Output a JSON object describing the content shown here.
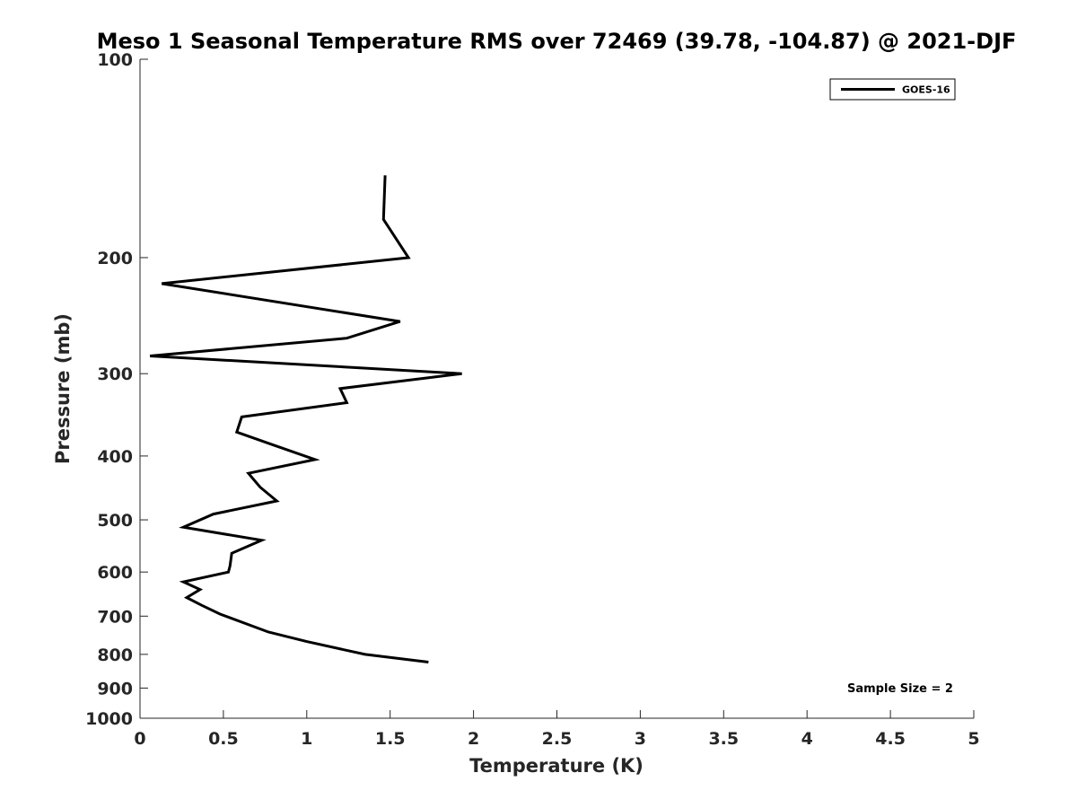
{
  "chart_data": {
    "type": "line",
    "title": "Meso 1 Seasonal Temperature RMS over 72469 (39.78, -104.87) @ 2021-DJF",
    "xlabel": "Temperature (K)",
    "ylabel": "Pressure (mb)",
    "xlim": [
      0,
      5
    ],
    "ylim": [
      1000,
      100
    ],
    "y_scale": "log",
    "y_reversed": true,
    "grid": false,
    "x_ticks": [
      0,
      0.5,
      1,
      1.5,
      2,
      2.5,
      3,
      3.5,
      4,
      4.5,
      5
    ],
    "x_tick_labels": [
      "0",
      "0.5",
      "1",
      "1.5",
      "2",
      "2.5",
      "3",
      "3.5",
      "4",
      "4.5",
      "5"
    ],
    "y_ticks": [
      100,
      200,
      300,
      400,
      500,
      600,
      700,
      800,
      900,
      1000
    ],
    "y_tick_labels": [
      "100",
      "200",
      "300",
      "400",
      "500",
      "600",
      "700",
      "800",
      "900",
      "1000"
    ],
    "legend_position": "top-right",
    "annotation": "Sample Size = 2",
    "series": [
      {
        "name": "GOES-16",
        "color": "#000000",
        "points": [
          {
            "x": 1.47,
            "y": 150
          },
          {
            "x": 1.46,
            "y": 175
          },
          {
            "x": 1.61,
            "y": 200
          },
          {
            "x": 0.13,
            "y": 219
          },
          {
            "x": 1.56,
            "y": 250
          },
          {
            "x": 1.24,
            "y": 265
          },
          {
            "x": 0.06,
            "y": 282
          },
          {
            "x": 1.93,
            "y": 300
          },
          {
            "x": 1.2,
            "y": 316
          },
          {
            "x": 1.24,
            "y": 332
          },
          {
            "x": 0.61,
            "y": 349
          },
          {
            "x": 0.58,
            "y": 368
          },
          {
            "x": 0.8,
            "y": 385
          },
          {
            "x": 1.05,
            "y": 405
          },
          {
            "x": 0.65,
            "y": 425
          },
          {
            "x": 0.72,
            "y": 446
          },
          {
            "x": 0.82,
            "y": 468
          },
          {
            "x": 0.44,
            "y": 490
          },
          {
            "x": 0.26,
            "y": 513
          },
          {
            "x": 0.73,
            "y": 537
          },
          {
            "x": 0.55,
            "y": 562
          },
          {
            "x": 0.54,
            "y": 587
          },
          {
            "x": 0.53,
            "y": 600
          },
          {
            "x": 0.26,
            "y": 621
          },
          {
            "x": 0.36,
            "y": 638
          },
          {
            "x": 0.28,
            "y": 656
          },
          {
            "x": 0.37,
            "y": 674
          },
          {
            "x": 0.48,
            "y": 695
          },
          {
            "x": 0.77,
            "y": 740
          },
          {
            "x": 1.0,
            "y": 765
          },
          {
            "x": 1.35,
            "y": 800
          },
          {
            "x": 1.73,
            "y": 822
          }
        ]
      }
    ]
  }
}
